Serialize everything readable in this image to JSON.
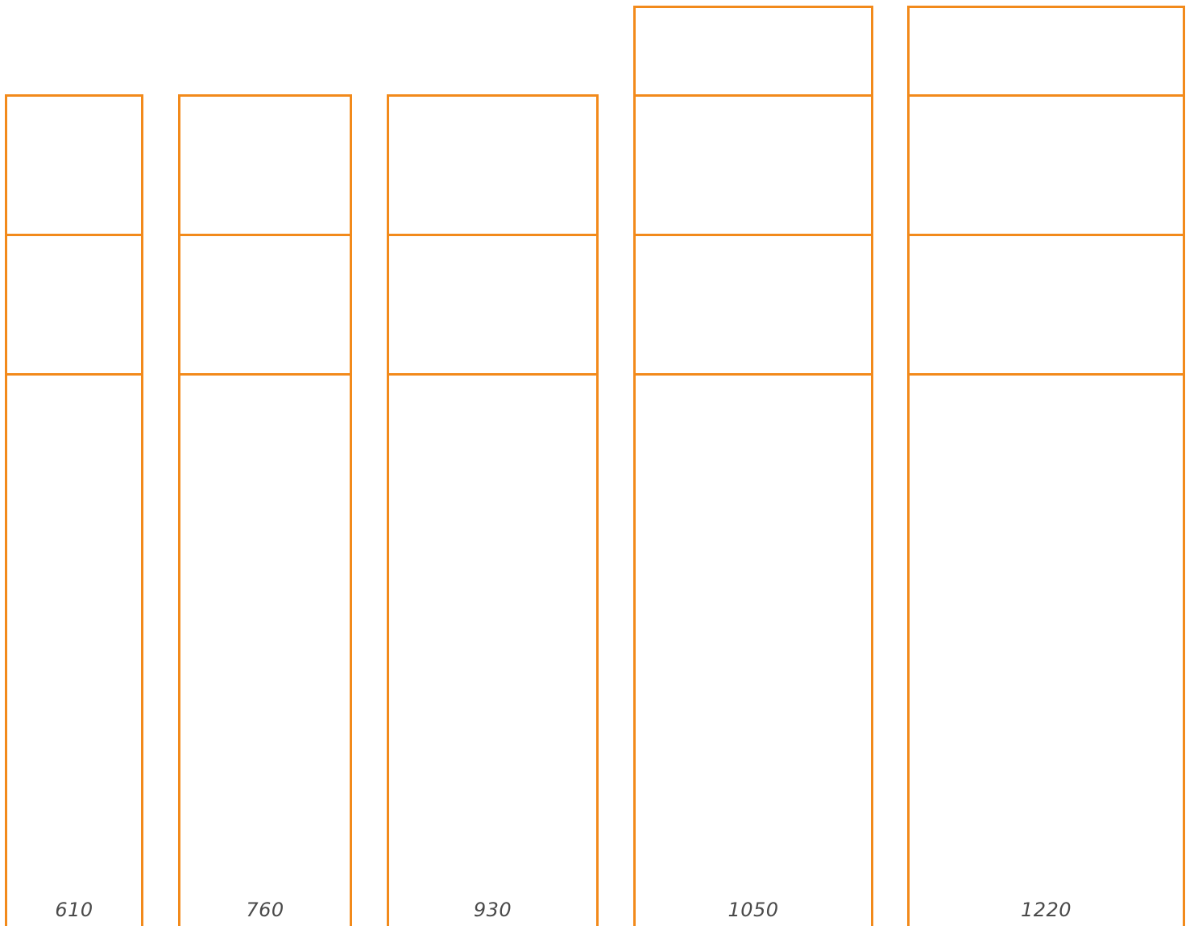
{
  "diagram": {
    "stroke_color": "#f28a1b",
    "label_color": "#4a4a4a",
    "units": [
      {
        "id": "unit-610",
        "label": "610",
        "tiers": 3
      },
      {
        "id": "unit-760",
        "label": "760",
        "tiers": 3
      },
      {
        "id": "unit-930",
        "label": "930",
        "tiers": 3
      },
      {
        "id": "unit-1050",
        "label": "1050",
        "tiers": 4
      },
      {
        "id": "unit-1220",
        "label": "1220",
        "tiers": 4
      }
    ]
  }
}
